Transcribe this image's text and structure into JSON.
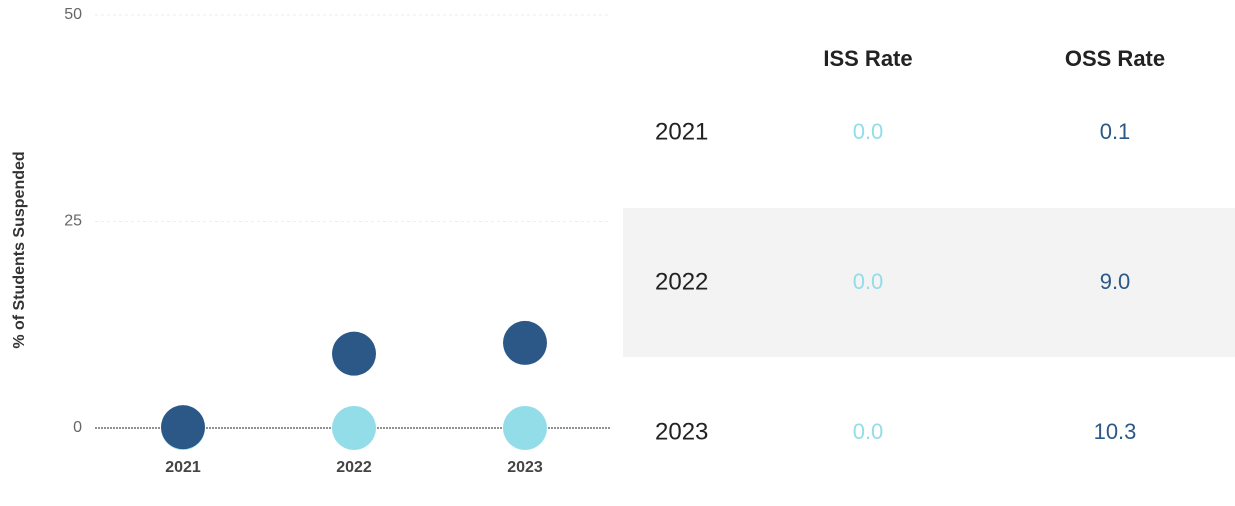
{
  "chart_data": {
    "type": "dot",
    "y_label": "% of Students Suspended",
    "categories": [
      "2021",
      "2022",
      "2023"
    ],
    "series": [
      {
        "name": "ISS Rate",
        "color": "#92dde8",
        "values": [
          0.0,
          0.0,
          0.0
        ],
        "value_labels": [
          "0.0",
          "0.0",
          "0.0"
        ]
      },
      {
        "name": "OSS Rate",
        "color": "#2b5886",
        "values": [
          0.1,
          9.0,
          10.3
        ],
        "value_labels": [
          "0.1",
          "9.0",
          "10.3"
        ]
      }
    ],
    "ylim": [
      0,
      50
    ],
    "yticks": [
      0,
      25,
      50
    ],
    "grid": true
  }
}
